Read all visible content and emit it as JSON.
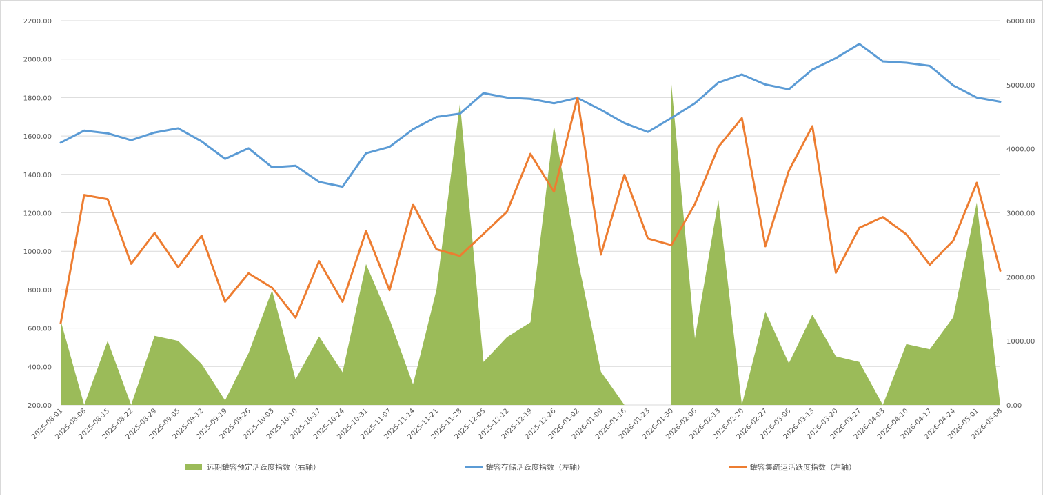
{
  "chart_data": {
    "type": "line",
    "title": "",
    "x": [
      "2025-08-01",
      "2025-08-08",
      "2025-08-15",
      "2025-08-22",
      "2025-08-29",
      "2025-09-05",
      "2025-09-12",
      "2025-09-19",
      "2025-09-26",
      "2025-10-03",
      "2025-10-10",
      "2025-10-17",
      "2025-10-24",
      "2025-10-31",
      "2025-11-07",
      "2025-11-14",
      "2025-11-21",
      "2025-11-28",
      "2025-12-05",
      "2025-12-12",
      "2025-12-19",
      "2025-12-26",
      "2026-01-02",
      "2026-01-09",
      "2026-01-16",
      "2026-01-23",
      "2026-01-30",
      "2026-02-06",
      "2026-02-13",
      "2026-02-20",
      "2026-02-27",
      "2026-03-06",
      "2026-03-13",
      "2026-03-20",
      "2026-03-27",
      "2026-04-03",
      "2026-04-10",
      "2026-04-17",
      "2026-04-24",
      "2026-05-01",
      "2026-05-08"
    ],
    "left_axis": {
      "ylim": [
        200,
        2200
      ],
      "ticks": [
        "200.00",
        "400.00",
        "600.00",
        "800.00",
        "1000.00",
        "1200.00",
        "1400.00",
        "1600.00",
        "1800.00",
        "2000.00",
        "2200.00"
      ]
    },
    "right_axis": {
      "ylim": [
        0,
        6000
      ],
      "ticks": [
        "0.00",
        "1000.00",
        "2000.00",
        "3000.00",
        "4000.00",
        "5000.00",
        "6000.00"
      ]
    },
    "grid": "horizontal",
    "legend_position": "bottom",
    "series": [
      {
        "name": "远期罐容预定活跃度指数（右轴）",
        "type": "area",
        "axis": "right",
        "color": "#9bbb59",
        "values": [
          1320,
          0,
          1000,
          0,
          1080,
          1000,
          640,
          70,
          810,
          1790,
          400,
          1070,
          510,
          2200,
          1340,
          320,
          1800,
          4720,
          670,
          1060,
          1290,
          4360,
          2300,
          520,
          0,
          null,
          5010,
          1040,
          3200,
          0,
          1460,
          650,
          1410,
          760,
          670,
          0,
          950,
          870,
          1370,
          3160,
          0
        ]
      },
      {
        "name": "罐容存储活跃度指数（左轴）",
        "type": "line",
        "axis": "left",
        "color": "#5b9bd5",
        "values": [
          1565,
          1628,
          1614,
          1578,
          1618,
          1640,
          1572,
          1481,
          1536,
          1437,
          1445,
          1361,
          1336,
          1510,
          1543,
          1635,
          1699,
          1716,
          1823,
          1800,
          1793,
          1770,
          1798,
          1736,
          1667,
          1621,
          1694,
          1770,
          1878,
          1920,
          1868,
          1843,
          1946,
          2005,
          2079,
          1988,
          1981,
          1965,
          1863,
          1800,
          1778
        ]
      },
      {
        "name": "罐容集疏运活跃度指数（左轴）",
        "type": "line",
        "axis": "left",
        "color": "#ed7d31",
        "values": [
          625,
          1293,
          1271,
          935,
          1095,
          917,
          1081,
          737,
          885,
          810,
          655,
          948,
          737,
          1105,
          797,
          1244,
          1010,
          976,
          1090,
          1206,
          1507,
          1310,
          1800,
          983,
          1398,
          1066,
          1032,
          1246,
          1543,
          1693,
          1026,
          1419,
          1651,
          888,
          1122,
          1178,
          1088,
          930,
          1055,
          1356,
          898
        ]
      }
    ]
  }
}
